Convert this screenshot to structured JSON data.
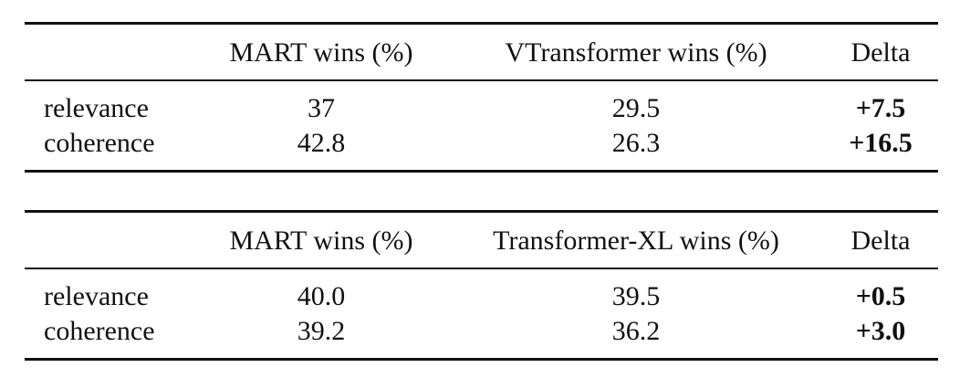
{
  "tables": [
    {
      "header": [
        "MART wins (%)",
        "VTransformer wins (%)",
        "Delta"
      ],
      "rows": [
        [
          "relevance",
          "37",
          "29.5",
          "+7.5"
        ],
        [
          "coherence",
          "42.8",
          "26.3",
          "+16.5"
        ]
      ]
    },
    {
      "header": [
        "MART wins (%)",
        "Transformer-XL wins (%)",
        "Delta"
      ],
      "rows": [
        [
          "relevance",
          "40.0",
          "39.5",
          "+0.5"
        ],
        [
          "coherence",
          "39.2",
          "36.2",
          "+3.0"
        ]
      ]
    }
  ]
}
